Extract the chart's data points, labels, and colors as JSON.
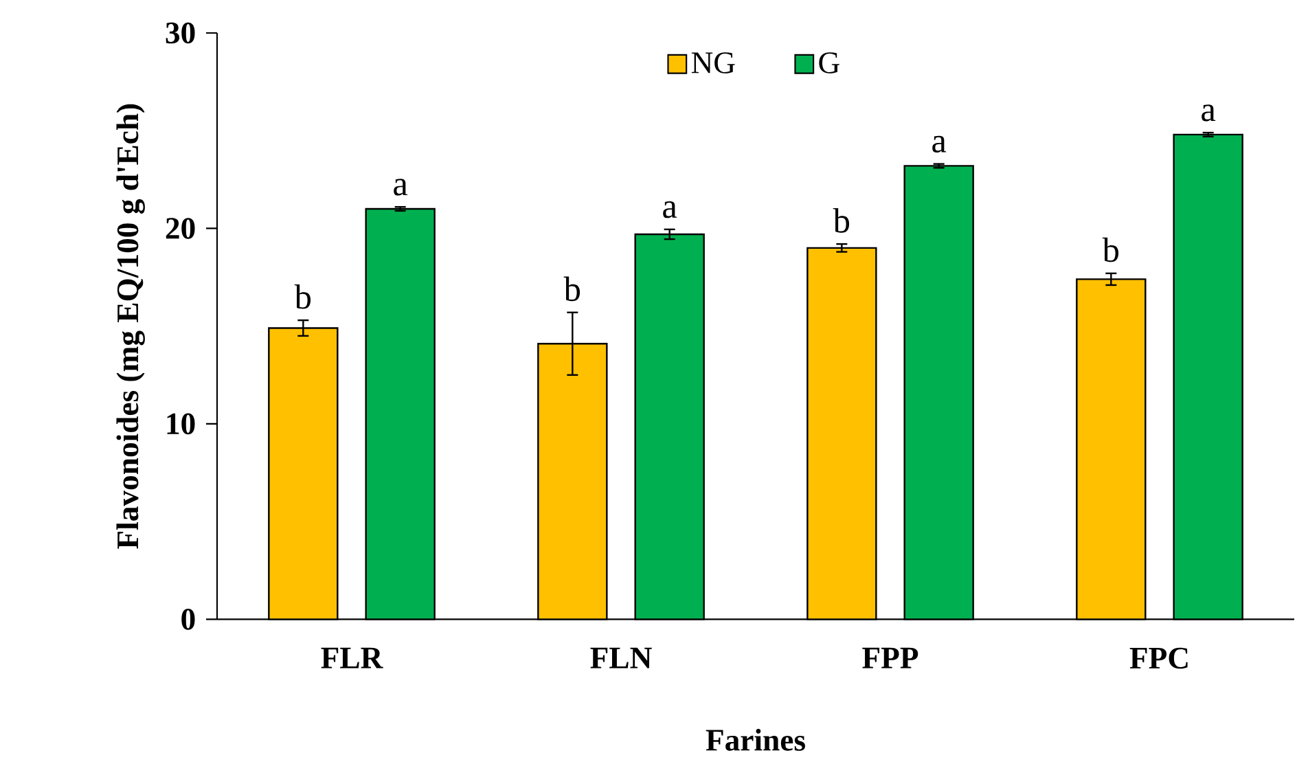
{
  "chart_data": {
    "type": "bar",
    "xlabel": "Farines",
    "ylabel": "Flavonoides (mg EQ/100 g d'Ech)",
    "categories": [
      "FLR",
      "FLN",
      "FPP",
      "FPC"
    ],
    "series": [
      {
        "name": "NG",
        "color": "#ffc000",
        "values": [
          14.9,
          14.1,
          19.0,
          17.4
        ],
        "errors": [
          0.4,
          1.6,
          0.2,
          0.3
        ]
      },
      {
        "name": "G",
        "color": "#00b050",
        "values": [
          21.0,
          19.7,
          23.2,
          24.8
        ],
        "errors": [
          0.1,
          0.25,
          0.1,
          0.1
        ]
      }
    ],
    "ylim": [
      0,
      30
    ],
    "yticks": [
      0,
      10,
      20,
      30
    ],
    "legend": "top",
    "grid": false,
    "annotations": [
      "b",
      "a",
      "b",
      "a",
      "b",
      "a",
      "b",
      "a"
    ]
  }
}
